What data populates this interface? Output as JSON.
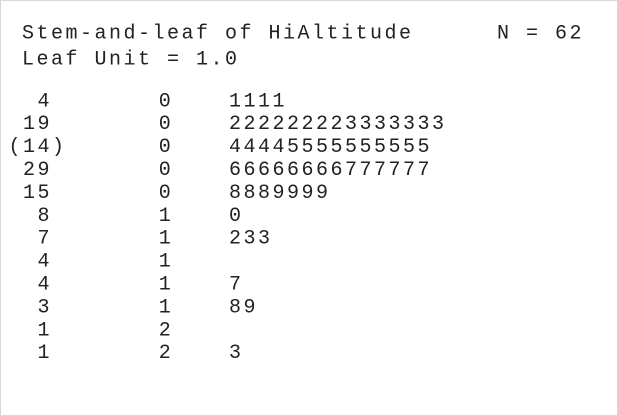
{
  "header": {
    "title": "Stem-and-leaf of HiAltitude",
    "count": "N = 62",
    "leaf_unit": "Leaf Unit = 1.0"
  },
  "table": {
    "rows": [
      {
        "depth": "4",
        "stem": "0",
        "leaves": "1111"
      },
      {
        "depth": "19",
        "stem": "0",
        "leaves": "222222223333333"
      },
      {
        "depth": "(14)",
        "stem": "0",
        "leaves": "44445555555555"
      },
      {
        "depth": "29",
        "stem": "0",
        "leaves": "66666666777777"
      },
      {
        "depth": "15",
        "stem": "0",
        "leaves": "8889999"
      },
      {
        "depth": "8",
        "stem": "1",
        "leaves": "0"
      },
      {
        "depth": "7",
        "stem": "1",
        "leaves": "233"
      },
      {
        "depth": "4",
        "stem": "1"
      },
      {
        "depth": "4",
        "stem": "1",
        "leaves": "7"
      },
      {
        "depth": "3",
        "stem": "1",
        "leaves": "89"
      },
      {
        "depth": "1",
        "stem": "2"
      },
      {
        "depth": "1",
        "stem": "2",
        "leaves": "3"
      }
    ]
  }
}
